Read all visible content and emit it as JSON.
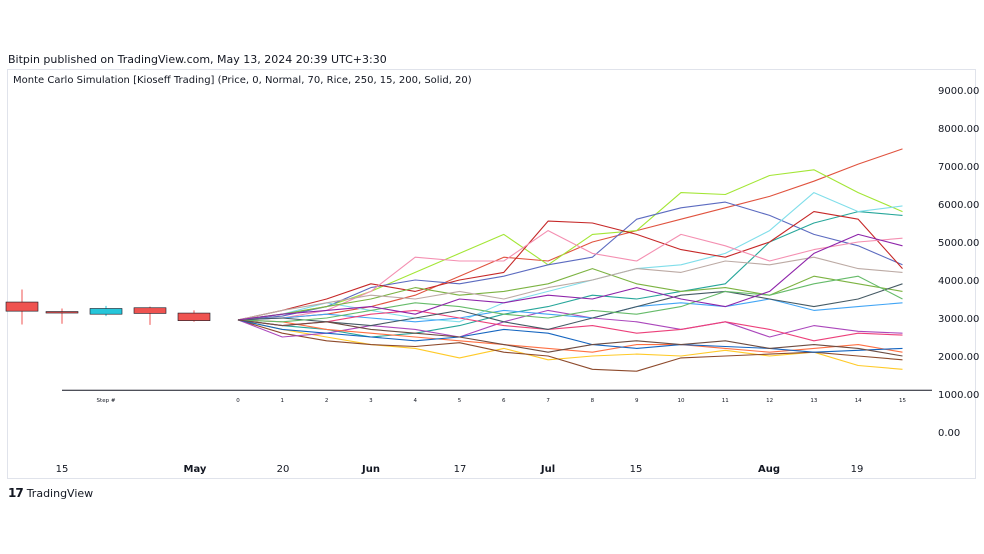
{
  "header": {
    "published": "Bitpin published on TradingView.com, May 13, 2024 20:39 UTC+3:30"
  },
  "indicator": {
    "title": "Monte Carlo Simulation [Kioseff Trading] (Price, 0, Normal, 70, Rice, 250, 15, 200, Solid, 20)"
  },
  "footer": {
    "logo_mark": "17",
    "logo_text": "TradingView"
  },
  "chart_data": {
    "type": "line",
    "title": "",
    "xlabel": "",
    "ylabel": "",
    "ylim": [
      0,
      9000
    ],
    "y_ticks": [
      "0.00",
      "1000.00",
      "2000.00",
      "3000.00",
      "4000.00",
      "5000.00",
      "6000.00",
      "7000.00",
      "8000.00",
      "9000.00"
    ],
    "x_ticks": [
      "15",
      "May",
      "20",
      "Jun",
      "17",
      "Jul",
      "15",
      "Aug",
      "19"
    ],
    "x_ticks_bold": [
      false,
      true,
      false,
      true,
      false,
      true,
      false,
      true,
      false
    ],
    "step_labels": [
      "Step #",
      "0",
      "1",
      "2",
      "3",
      "4",
      "5",
      "6",
      "7",
      "8",
      "9",
      "10",
      "11",
      "12",
      "13",
      "14",
      "15"
    ],
    "baseline_value": 1100,
    "candles": [
      {
        "open": 3420,
        "close": 3180,
        "high": 3750,
        "low": 2830,
        "color": "#ef5350"
      },
      {
        "open": 3170,
        "close": 3150,
        "high": 3250,
        "low": 2850,
        "color": "#ef5350"
      },
      {
        "open": 3100,
        "close": 3250,
        "high": 3320,
        "low": 3050,
        "color": "#26c6da"
      },
      {
        "open": 3270,
        "close": 3120,
        "high": 3300,
        "low": 2820,
        "color": "#ef5350"
      },
      {
        "open": 3130,
        "close": 2930,
        "high": 3200,
        "low": 2900,
        "color": "#ef5350"
      }
    ],
    "series": [
      {
        "color": "#e0533f",
        "values": [
          2950,
          3000,
          3100,
          3300,
          3600,
          4100,
          4600,
          4500,
          5000,
          5300,
          5600,
          5900,
          6200,
          6600,
          7050,
          7450
        ]
      },
      {
        "color": "#a3e635",
        "values": [
          2950,
          3100,
          3300,
          3700,
          4200,
          4700,
          5200,
          4400,
          5200,
          5300,
          6300,
          6250,
          6750,
          6900,
          6300,
          5800
        ]
      },
      {
        "color": "#5c6bc0",
        "values": [
          2950,
          3050,
          3300,
          3800,
          4000,
          3900,
          4100,
          4400,
          4600,
          5600,
          5900,
          6050,
          5700,
          5200,
          4900,
          4400
        ]
      },
      {
        "color": "#26a69a",
        "values": [
          2950,
          2800,
          2700,
          2500,
          2600,
          2800,
          3100,
          3300,
          3600,
          3500,
          3700,
          3900,
          5000,
          5500,
          5800,
          5700
        ]
      },
      {
        "color": "#80deea",
        "values": [
          2950,
          3100,
          3400,
          3200,
          3000,
          2900,
          3400,
          3700,
          4000,
          4300,
          4400,
          4700,
          5300,
          6300,
          5800,
          5950
        ]
      },
      {
        "color": "#c62828",
        "values": [
          2950,
          3200,
          3500,
          3900,
          3700,
          4000,
          4200,
          5550,
          5500,
          5200,
          4800,
          4600,
          5000,
          5800,
          5600,
          4300
        ]
      },
      {
        "color": "#f48fb1",
        "values": [
          2950,
          3000,
          3200,
          3700,
          4600,
          4500,
          4500,
          5300,
          4700,
          4500,
          5200,
          4900,
          4500,
          4800,
          5000,
          5100
        ]
      },
      {
        "color": "#ffca28",
        "values": [
          2950,
          2700,
          2500,
          2300,
          2200,
          1950,
          2200,
          1900,
          2000,
          2050,
          2000,
          2150,
          2000,
          2100,
          1750,
          1650
        ]
      },
      {
        "color": "#8d4a2c",
        "values": [
          2950,
          2600,
          2400,
          2300,
          2250,
          2350,
          2100,
          2000,
          1650,
          1600,
          1950,
          2000,
          2050,
          2100,
          2000,
          1900
        ]
      },
      {
        "color": "#ab47bc",
        "values": [
          2950,
          2500,
          2600,
          2800,
          2700,
          2500,
          2900,
          3200,
          3000,
          2900,
          2700,
          2900,
          2500,
          2800,
          2650,
          2600
        ]
      },
      {
        "color": "#7cb342",
        "values": [
          2950,
          3100,
          3300,
          3500,
          3800,
          3600,
          3700,
          3900,
          4300,
          3900,
          3700,
          3800,
          3600,
          4100,
          3900,
          3700
        ]
      },
      {
        "color": "#ff7043",
        "values": [
          2950,
          2900,
          2700,
          2600,
          2500,
          2400,
          2300,
          2200,
          2100,
          2300,
          2300,
          2200,
          2100,
          2200,
          2300,
          2100
        ]
      },
      {
        "color": "#42a5f5",
        "values": [
          2950,
          3000,
          3100,
          3000,
          2900,
          3000,
          3200,
          3100,
          3000,
          3300,
          3400,
          3300,
          3500,
          3200,
          3300,
          3400
        ]
      },
      {
        "color": "#ec407a",
        "values": [
          2950,
          2800,
          2900,
          3100,
          3200,
          3000,
          2800,
          2700,
          2800,
          2600,
          2700,
          2900,
          2700,
          2400,
          2600,
          2550
        ]
      },
      {
        "color": "#455a64",
        "values": [
          2950,
          3000,
          2900,
          2800,
          3000,
          3200,
          2900,
          2700,
          3000,
          3300,
          3600,
          3700,
          3500,
          3300,
          3500,
          3900
        ]
      },
      {
        "color": "#bcaaa4",
        "values": [
          2950,
          3200,
          3400,
          3600,
          3500,
          3700,
          3500,
          3800,
          4000,
          4300,
          4200,
          4500,
          4400,
          4600,
          4300,
          4200
        ]
      },
      {
        "color": "#1565c0",
        "values": [
          2950,
          2700,
          2600,
          2500,
          2400,
          2500,
          2700,
          2600,
          2300,
          2200,
          2300,
          2250,
          2200,
          2100,
          2150,
          2200
        ]
      },
      {
        "color": "#66bb6a",
        "values": [
          2950,
          2900,
          3000,
          3200,
          3400,
          3300,
          3100,
          3000,
          3200,
          3100,
          3300,
          3700,
          3600,
          3900,
          4100,
          3500
        ]
      },
      {
        "color": "#8e24aa",
        "values": [
          2950,
          3100,
          3200,
          3300,
          3100,
          3500,
          3400,
          3600,
          3500,
          3800,
          3500,
          3300,
          3700,
          4700,
          5200,
          4900
        ]
      },
      {
        "color": "#6d4c41",
        "values": [
          2950,
          2800,
          2900,
          2700,
          2600,
          2500,
          2300,
          2100,
          2300,
          2400,
          2300,
          2400,
          2200,
          2300,
          2200,
          2000
        ]
      }
    ]
  }
}
